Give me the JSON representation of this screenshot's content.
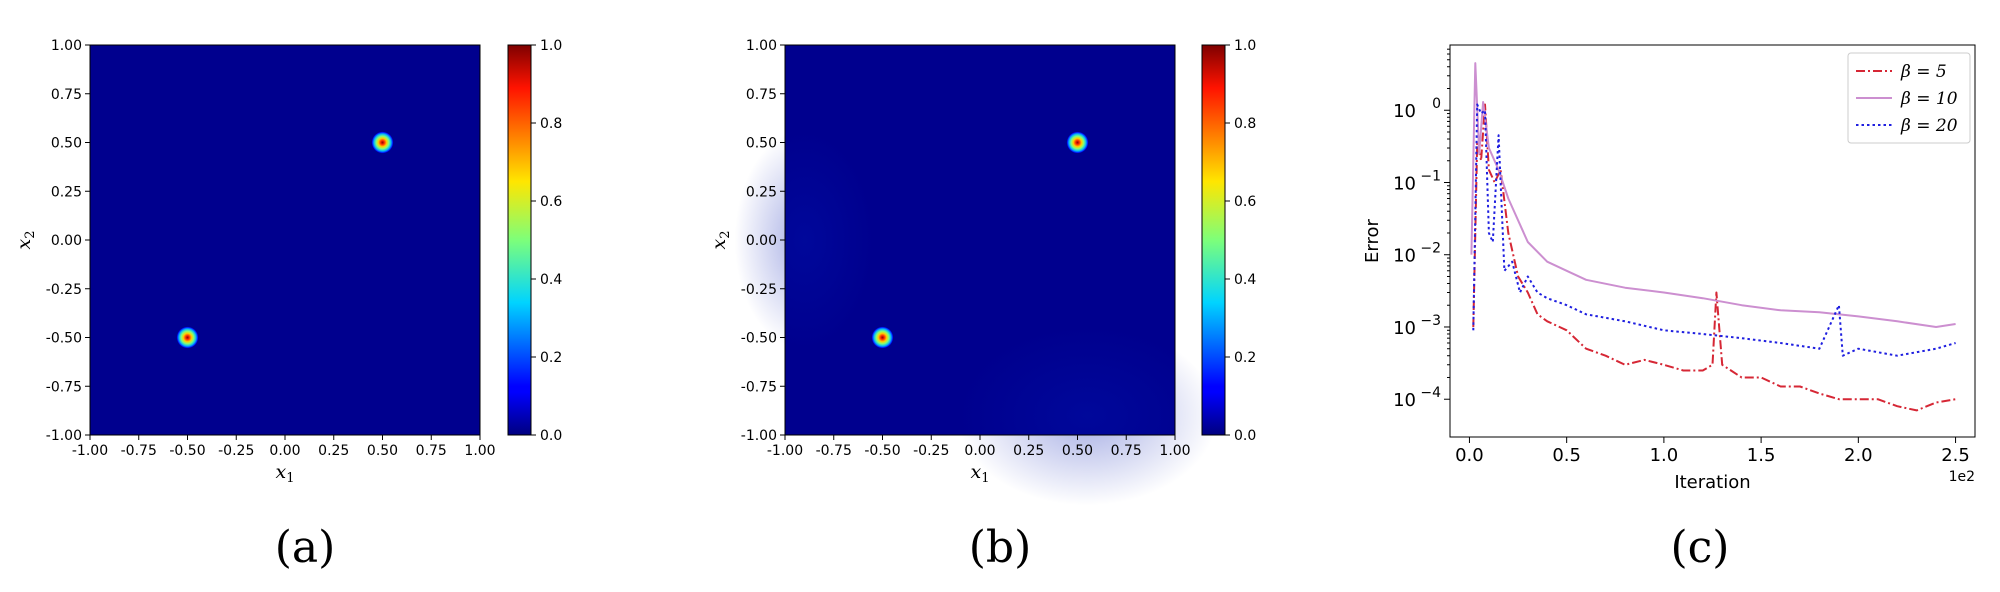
{
  "chart_data": [
    {
      "type": "heatmap",
      "panel_label": "(a)",
      "xlabel_symbol": "x",
      "xlabel_sub": "1",
      "ylabel_symbol": "x",
      "ylabel_sub": "2",
      "xlim": [
        -1.0,
        1.0
      ],
      "ylim": [
        -1.0,
        1.0
      ],
      "xticks": [
        "-1.00",
        "-0.75",
        "-0.50",
        "-0.25",
        "0.00",
        "0.25",
        "0.50",
        "0.75",
        "1.00"
      ],
      "yticks": [
        "-1.00",
        "-0.75",
        "-0.50",
        "-0.25",
        "0.00",
        "0.25",
        "0.50",
        "0.75",
        "1.00"
      ],
      "colormap": "jet",
      "colorbar_range": [
        0.0,
        1.0
      ],
      "colorbar_ticks": [
        "0.0",
        "0.2",
        "0.4",
        "0.6",
        "0.8",
        "1.0"
      ],
      "background_value": 0.0,
      "peaks": [
        {
          "x": 0.5,
          "y": 0.5,
          "value": 1.0
        },
        {
          "x": -0.5,
          "y": -0.5,
          "value": 1.0
        }
      ]
    },
    {
      "type": "heatmap",
      "panel_label": "(b)",
      "xlabel_symbol": "x",
      "xlabel_sub": "1",
      "ylabel_symbol": "x",
      "ylabel_sub": "2",
      "xlim": [
        -1.0,
        1.0
      ],
      "ylim": [
        -1.0,
        1.0
      ],
      "xticks": [
        "-1.00",
        "-0.75",
        "-0.50",
        "-0.25",
        "0.00",
        "0.25",
        "0.50",
        "0.75",
        "1.00"
      ],
      "yticks": [
        "-1.00",
        "-0.75",
        "-0.50",
        "-0.25",
        "0.00",
        "0.25",
        "0.50",
        "0.75",
        "1.00"
      ],
      "colormap": "jet",
      "colorbar_range": [
        0.0,
        1.0
      ],
      "colorbar_ticks": [
        "0.0",
        "0.2",
        "0.4",
        "0.6",
        "0.8",
        "1.0"
      ],
      "background_value": 0.02,
      "peaks": [
        {
          "x": 0.5,
          "y": 0.5,
          "value": 1.0
        },
        {
          "x": -0.5,
          "y": -0.5,
          "value": 1.0
        }
      ]
    },
    {
      "type": "line",
      "panel_label": "(c)",
      "xlabel": "Iteration",
      "ylabel": "Error",
      "x_scale_label": "1e2",
      "yscale": "log",
      "xlim": [
        -0.1,
        2.6
      ],
      "ylim": [
        3e-05,
        8
      ],
      "xticks": [
        {
          "value": 0.0,
          "label": "0.0"
        },
        {
          "value": 0.5,
          "label": "0.5"
        },
        {
          "value": 1.0,
          "label": "1.0"
        },
        {
          "value": 1.5,
          "label": "1.5"
        },
        {
          "value": 2.0,
          "label": "2.0"
        },
        {
          "value": 2.5,
          "label": "2.5"
        }
      ],
      "yticks": [
        {
          "value": 1,
          "base": "10",
          "exp": "0"
        },
        {
          "value": 0.1,
          "base": "10",
          "exp": "−1"
        },
        {
          "value": 0.01,
          "base": "10",
          "exp": "−2"
        },
        {
          "value": 0.001,
          "base": "10",
          "exp": "−3"
        },
        {
          "value": 0.0001,
          "base": "10",
          "exp": "−4"
        }
      ],
      "legend_position": "top-right",
      "series": [
        {
          "name": "β = 5",
          "color": "#d62735",
          "dash": "dashdot",
          "x": [
            0.02,
            0.04,
            0.06,
            0.08,
            0.1,
            0.13,
            0.16,
            0.2,
            0.25,
            0.3,
            0.35,
            0.4,
            0.5,
            0.6,
            0.7,
            0.8,
            0.9,
            1.0,
            1.1,
            1.2,
            1.25,
            1.27,
            1.3,
            1.4,
            1.5,
            1.6,
            1.7,
            1.8,
            1.9,
            2.0,
            2.1,
            2.2,
            2.3,
            2.4,
            2.5
          ],
          "y": [
            0.001,
            0.35,
            0.2,
            1.2,
            0.15,
            0.1,
            0.15,
            0.02,
            0.005,
            0.003,
            0.0015,
            0.0012,
            0.0009,
            0.0005,
            0.0004,
            0.0003,
            0.00035,
            0.0003,
            0.00025,
            0.00025,
            0.0003,
            0.003,
            0.0003,
            0.0002,
            0.0002,
            0.00015,
            0.00015,
            0.00012,
            0.0001,
            0.0001,
            0.0001,
            8e-05,
            7e-05,
            9e-05,
            0.0001
          ]
        },
        {
          "name": "β = 10",
          "color": "#cc8fd0",
          "dash": "solid",
          "x": [
            0.01,
            0.03,
            0.05,
            0.07,
            0.1,
            0.15,
            0.2,
            0.3,
            0.4,
            0.5,
            0.6,
            0.8,
            1.0,
            1.2,
            1.4,
            1.6,
            1.8,
            2.0,
            2.2,
            2.4,
            2.5
          ],
          "y": [
            0.01,
            4.5,
            0.25,
            1.3,
            0.3,
            0.15,
            0.06,
            0.015,
            0.008,
            0.006,
            0.0045,
            0.0035,
            0.003,
            0.0025,
            0.002,
            0.0017,
            0.0016,
            0.0014,
            0.0012,
            0.001,
            0.0011
          ]
        },
        {
          "name": "β = 20",
          "color": "#1f1fe0",
          "dash": "dotted",
          "x": [
            0.02,
            0.04,
            0.06,
            0.08,
            0.1,
            0.12,
            0.15,
            0.18,
            0.22,
            0.26,
            0.3,
            0.35,
            0.4,
            0.5,
            0.6,
            0.8,
            1.0,
            1.2,
            1.4,
            1.6,
            1.8,
            1.9,
            1.92,
            2.0,
            2.2,
            2.4,
            2.5
          ],
          "y": [
            0.0009,
            1.2,
            0.9,
            1.0,
            0.02,
            0.015,
            0.45,
            0.006,
            0.008,
            0.003,
            0.005,
            0.003,
            0.0025,
            0.002,
            0.0015,
            0.0012,
            0.0009,
            0.0008,
            0.0007,
            0.0006,
            0.0005,
            0.002,
            0.0004,
            0.0005,
            0.0004,
            0.0005,
            0.0006
          ]
        }
      ]
    }
  ]
}
